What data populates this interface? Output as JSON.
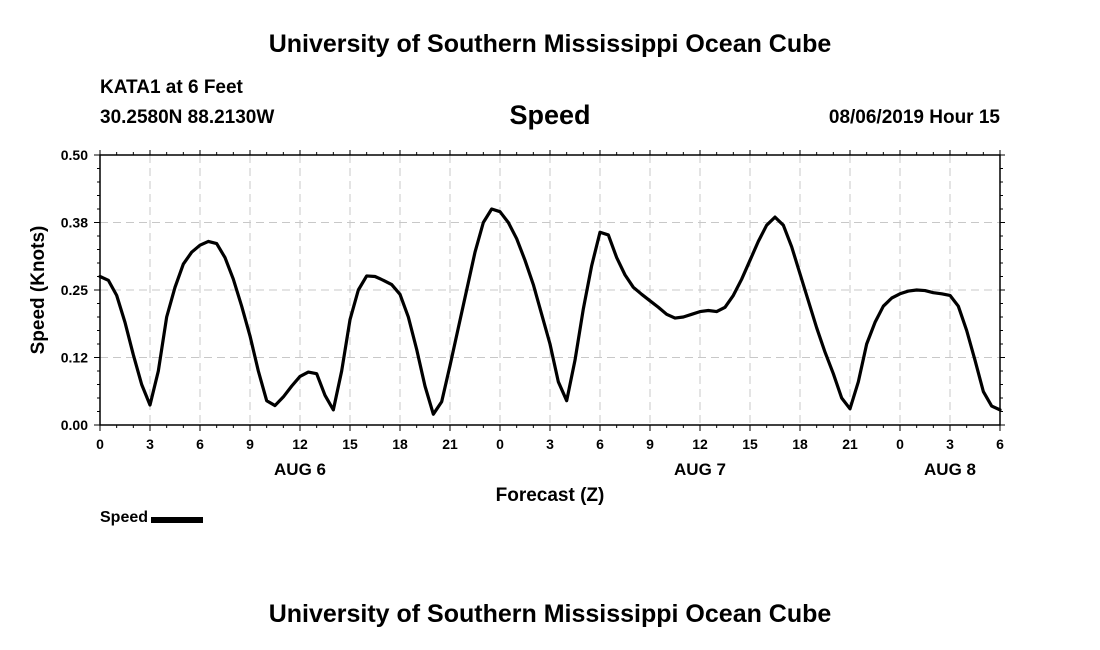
{
  "header": {
    "title": "University of Southern Mississippi Ocean Cube",
    "station": "KATA1 at 6 Feet",
    "coords": "30.2580N 88.2130W",
    "variable": "Speed",
    "timestamp": "08/06/2019 Hour 15"
  },
  "footer": {
    "title": "University of Southern Mississippi Ocean Cube"
  },
  "legend": {
    "label": "Speed",
    "color": "#000000"
  },
  "chart_data": {
    "type": "line",
    "title": "Speed",
    "xlabel": "Forecast (Z)",
    "ylabel": "Speed (Knots)",
    "xlim": [
      0,
      54
    ],
    "ylim": [
      0,
      0.5
    ],
    "yticks": [
      "0.00",
      "0.12",
      "0.25",
      "0.38",
      "0.50"
    ],
    "ytick_values": [
      0,
      0.125,
      0.25,
      0.375,
      0.5
    ],
    "xticks": [
      "0",
      "3",
      "6",
      "9",
      "12",
      "15",
      "18",
      "21",
      "0",
      "3",
      "6",
      "9",
      "12",
      "15",
      "18",
      "21",
      "0",
      "3",
      "6"
    ],
    "date_labels": [
      {
        "label": "AUG 6",
        "hour": 12
      },
      {
        "label": "AUG 7",
        "hour": 36
      },
      {
        "label": "AUG 8",
        "hour": 51
      }
    ],
    "grid": true,
    "legend_position": "bottom-left",
    "series": [
      {
        "name": "Speed",
        "color": "#000000",
        "x": [
          0,
          0.5,
          1,
          1.5,
          2,
          2.5,
          3,
          3.5,
          4,
          4.5,
          5,
          5.5,
          6,
          6.5,
          7,
          7.5,
          8,
          8.5,
          9,
          9.5,
          10,
          10.5,
          11,
          11.5,
          12,
          12.5,
          13,
          13.5,
          14,
          14.5,
          15,
          15.5,
          16,
          16.5,
          17,
          17.5,
          18,
          18.5,
          19,
          19.5,
          20,
          20.5,
          21,
          21.5,
          22,
          22.5,
          23,
          23.5,
          24,
          24.5,
          25,
          25.5,
          26,
          26.5,
          27,
          27.5,
          28,
          28.5,
          29,
          29.5,
          30,
          30.5,
          31,
          31.5,
          32,
          32.5,
          33,
          33.5,
          34,
          34.5,
          35,
          35.5,
          36,
          36.5,
          37,
          37.5,
          38,
          38.5,
          39,
          39.5,
          40,
          40.5,
          41,
          41.5,
          42,
          42.5,
          43,
          43.5,
          44,
          44.5,
          45,
          45.5,
          46,
          46.5,
          47,
          47.5,
          48,
          48.5,
          49,
          49.5,
          50,
          50.5,
          51,
          51.5,
          52,
          52.5,
          53,
          53.5,
          54
        ],
        "values": [
          0.275,
          0.268,
          0.24,
          0.19,
          0.13,
          0.075,
          0.037,
          0.1,
          0.2,
          0.255,
          0.298,
          0.32,
          0.333,
          0.34,
          0.336,
          0.31,
          0.27,
          0.22,
          0.165,
          0.1,
          0.045,
          0.036,
          0.052,
          0.072,
          0.09,
          0.098,
          0.095,
          0.055,
          0.028,
          0.1,
          0.195,
          0.25,
          0.276,
          0.275,
          0.268,
          0.26,
          0.242,
          0.2,
          0.14,
          0.072,
          0.02,
          0.043,
          0.11,
          0.18,
          0.25,
          0.32,
          0.375,
          0.4,
          0.395,
          0.375,
          0.345,
          0.305,
          0.26,
          0.205,
          0.15,
          0.08,
          0.045,
          0.12,
          0.215,
          0.295,
          0.357,
          0.352,
          0.31,
          0.278,
          0.255,
          0.242,
          0.23,
          0.218,
          0.205,
          0.198,
          0.2,
          0.205,
          0.21,
          0.212,
          0.21,
          0.218,
          0.24,
          0.27,
          0.305,
          0.34,
          0.37,
          0.385,
          0.37,
          0.33,
          0.28,
          0.23,
          0.18,
          0.135,
          0.095,
          0.05,
          0.03,
          0.08,
          0.15,
          0.19,
          0.22,
          0.235,
          0.243,
          0.248,
          0.25,
          0.249,
          0.245,
          0.243,
          0.24,
          0.22,
          0.175,
          0.12,
          0.062,
          0.035,
          0.028
        ]
      }
    ]
  }
}
